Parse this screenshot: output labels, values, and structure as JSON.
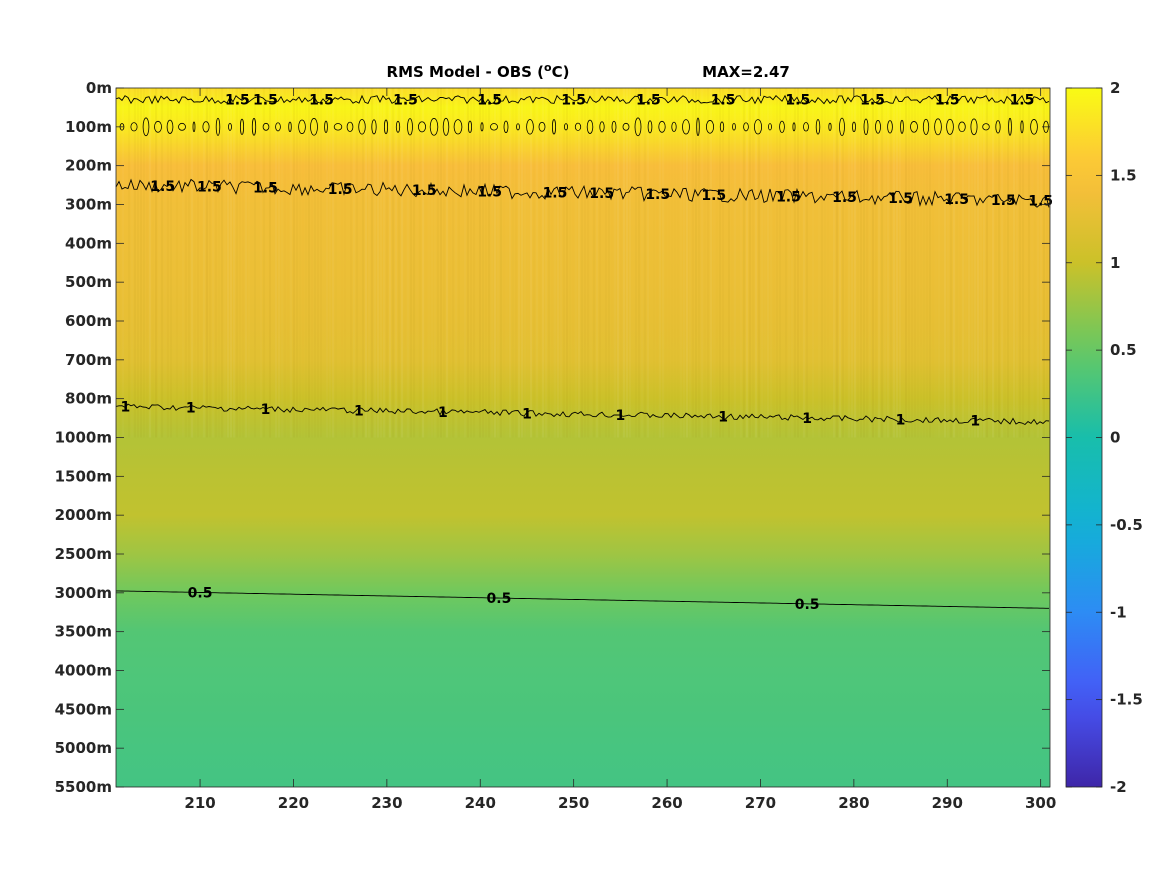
{
  "chart_data": {
    "type": "heatmap",
    "title": "RMS Model - OBS (",
    "title_unit_super": "o",
    "title_unit_tail": "C)",
    "max_label": "MAX=2.47",
    "x_ticks": [
      "210",
      "220",
      "230",
      "240",
      "250",
      "260",
      "270",
      "280",
      "290",
      "300"
    ],
    "x_tick_values": [
      210,
      220,
      230,
      240,
      250,
      260,
      270,
      280,
      290,
      300
    ],
    "xlim": [
      201,
      301
    ],
    "y_ticks": [
      "0m",
      "100m",
      "200m",
      "300m",
      "400m",
      "500m",
      "600m",
      "700m",
      "800m",
      "1000m",
      "1500m",
      "2000m",
      "2500m",
      "3000m",
      "3500m",
      "4000m",
      "4500m",
      "5000m",
      "5500m"
    ],
    "colorbar": {
      "ticks": [
        "2",
        "1.5",
        "1",
        "0.5",
        "0",
        "-0.5",
        "-1",
        "-1.5",
        "-2"
      ],
      "tick_values": [
        2,
        1.5,
        1,
        0.5,
        0,
        -0.5,
        -1,
        -1.5,
        -2
      ],
      "clim": [
        -2,
        2
      ],
      "colormap": "parula"
    },
    "depth_profile": {
      "depth_tick_index": [
        0,
        0.5,
        1,
        2,
        3,
        4,
        5,
        6,
        7,
        8,
        9,
        10,
        11,
        12,
        13,
        14,
        15,
        16,
        17,
        18
      ],
      "rms_value": [
        1.75,
        1.95,
        1.85,
        1.45,
        1.38,
        1.35,
        1.32,
        1.28,
        1.22,
        1.0,
        0.88,
        0.92,
        0.95,
        0.78,
        0.55,
        0.38,
        0.35,
        0.33,
        0.3,
        0.28
      ]
    },
    "contours": [
      {
        "level": "1.5",
        "depth_tick_index_start": 0.3,
        "depth_tick_index_end": 0.3,
        "labels_x": [
          214,
          217,
          223,
          232,
          241,
          250,
          258,
          266,
          274,
          282,
          290,
          298
        ]
      },
      {
        "level": "1.5",
        "depth_tick_index_start": 2.5,
        "depth_tick_index_end": 2.9,
        "labels_x": [
          206,
          211,
          217,
          225,
          234,
          241,
          248,
          253,
          259,
          265,
          273,
          279,
          285,
          291,
          296,
          300
        ]
      },
      {
        "level": "1",
        "depth_tick_index_start": 8.2,
        "depth_tick_index_end": 8.6,
        "labels_x": [
          202,
          209,
          217,
          227,
          236,
          245,
          255,
          266,
          275,
          285,
          293
        ]
      },
      {
        "level": "0.5",
        "depth_tick_index_start": 12.95,
        "depth_tick_index_end": 13.4,
        "labels_x": [
          210,
          242,
          275
        ]
      }
    ]
  }
}
